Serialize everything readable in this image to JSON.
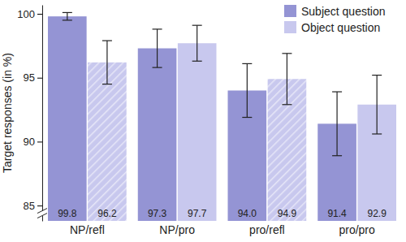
{
  "chart_data": {
    "type": "bar",
    "ylabel": "Target responses (in %)",
    "categories": [
      "NP/refl",
      "NP/pro",
      "pro/refl",
      "pro/pro"
    ],
    "series": [
      {
        "name": "Subject question",
        "color": "#9494d4",
        "values": [
          99.8,
          97.3,
          94.0,
          91.4
        ],
        "value_labels": [
          "99.8",
          "97.3",
          "94.0",
          "91.4"
        ],
        "errors": [
          0.3,
          1.5,
          2.1,
          2.5
        ]
      },
      {
        "name": "Object question",
        "color": "#c8c8ee",
        "values": [
          96.2,
          97.7,
          94.9,
          92.9
        ],
        "errors": [
          1.7,
          1.4,
          2.0,
          2.3
        ]
      }
    ],
    "ylim": [
      83.8,
      100.7
    ],
    "yticks": [
      85,
      90,
      95,
      100
    ],
    "legend": "upper right",
    "data_labels": true,
    "grid": false
  }
}
